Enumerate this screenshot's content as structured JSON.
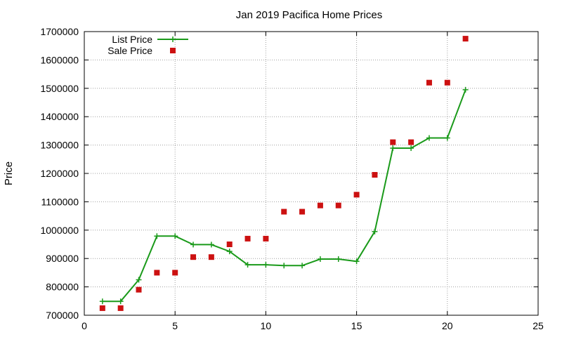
{
  "chart_data": {
    "type": "line",
    "title": "Jan 2019 Pacifica Home Prices",
    "xlabel": "",
    "ylabel": "Price",
    "xlim": [
      0,
      25
    ],
    "ylim": [
      700000,
      1700000
    ],
    "xticks": [
      0,
      5,
      10,
      15,
      20,
      25
    ],
    "yticks": [
      700000,
      800000,
      900000,
      1000000,
      1100000,
      1200000,
      1300000,
      1400000,
      1500000,
      1600000,
      1700000
    ],
    "grid": true,
    "legend_position": "top-left",
    "series": [
      {
        "name": "List Price",
        "style": "line-with-plus-markers",
        "color": "#1a9a1a",
        "x": [
          1,
          2,
          3,
          4,
          5,
          6,
          7,
          8,
          9,
          10,
          11,
          12,
          13,
          14,
          15,
          16,
          17,
          18,
          19,
          20,
          21
        ],
        "y": [
          749000,
          749000,
          825000,
          979000,
          979000,
          949000,
          949000,
          925000,
          878000,
          878000,
          875000,
          875000,
          898000,
          898000,
          890000,
          995000,
          1289000,
          1289000,
          1325000,
          1325000,
          1495000
        ]
      },
      {
        "name": "Sale Price",
        "style": "square-markers",
        "color": "#cc1111",
        "x": [
          1,
          2,
          3,
          4,
          5,
          6,
          7,
          8,
          9,
          10,
          11,
          12,
          13,
          14,
          15,
          16,
          17,
          18,
          19,
          20,
          21
        ],
        "y": [
          725000,
          725000,
          790000,
          850000,
          850000,
          905000,
          905000,
          950000,
          970000,
          970000,
          1065000,
          1065000,
          1087000,
          1087000,
          1125000,
          1195000,
          1310000,
          1310000,
          1520000,
          1520000,
          1675000
        ]
      }
    ]
  }
}
